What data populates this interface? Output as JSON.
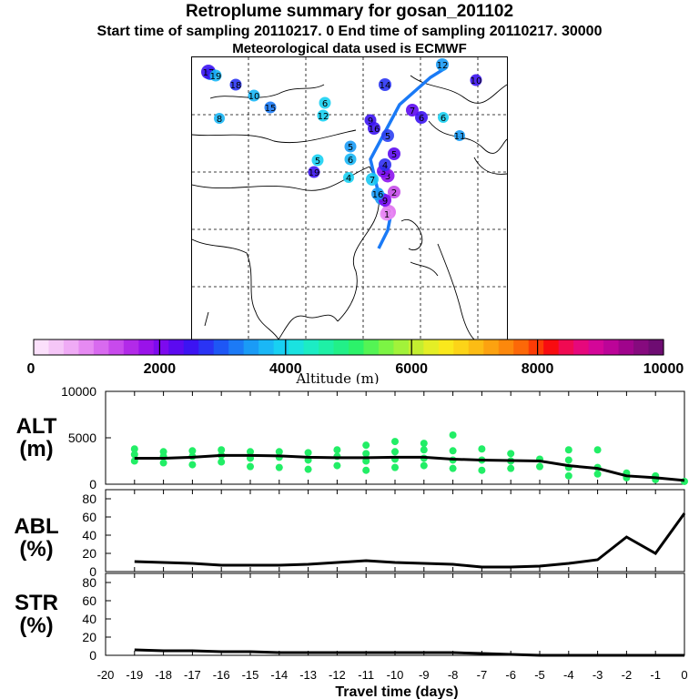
{
  "header": {
    "title": "Retroplume summary for gosan_201102",
    "sampling_line": "Start time of sampling 20110217.    0     End time of sampling 20110217. 30000",
    "met_line": "Meteorological data used is ECMWF"
  },
  "colorbar": {
    "colors": [
      "#fbe0fb",
      "#f5c6f7",
      "#efabf5",
      "#e68af2",
      "#d86aef",
      "#c84aec",
      "#b22ae8",
      "#9a12ea",
      "#7d0aee",
      "#5c0af0",
      "#3c14f2",
      "#2a34f4",
      "#1e57f5",
      "#1c7af6",
      "#1a9bf6",
      "#1ab7f6",
      "#18d0f2",
      "#1ae2e0",
      "#1cecc4",
      "#1ef0a6",
      "#22f088",
      "#2cf26a",
      "#54f454",
      "#7cf444",
      "#a2f23a",
      "#c4ee30",
      "#e4ee26",
      "#fae81c",
      "#fcd418",
      "#fcbc14",
      "#fca210",
      "#fc880c",
      "#fc6808",
      "#fc3c06",
      "#f80c10",
      "#f00a52",
      "#e6087c",
      "#d40698",
      "#bc0498",
      "#a0048c",
      "#860a7e",
      "#6e0c72"
    ],
    "tick_labels": [
      "0",
      "2000",
      "4000",
      "6000",
      "8000",
      "10000"
    ],
    "label": "Altitude (m)"
  },
  "panels": {
    "alt_label": "ALT\n(m)",
    "abl_label": "ABL\n(%)",
    "str_label": "STR\n(%)",
    "alt_ticks": [
      "0",
      "5000",
      "10000"
    ],
    "pct_ticks": [
      "0",
      "20",
      "40",
      "60",
      "80"
    ],
    "x_ticks": [
      "-20",
      "-19",
      "-18",
      "-17",
      "-16",
      "-15",
      "-14",
      "-13",
      "-12",
      "-11",
      "-10",
      "-9",
      "-8",
      "-7",
      "-6",
      "-5",
      "-4",
      "-3",
      "-2",
      "-1",
      "0"
    ],
    "xlabel": "Travel time (days)"
  },
  "chart_data": [
    {
      "type": "line",
      "name": "ALT",
      "ylabel": "ALT (m)",
      "xlim": [
        -20,
        0
      ],
      "ylim": [
        0,
        10000
      ],
      "x": [
        -19,
        -18,
        -17,
        -16,
        -15,
        -14,
        -13,
        -12,
        -11,
        -10,
        -9,
        -8,
        -7,
        -6,
        -5,
        -4,
        -3,
        -2,
        -1,
        0
      ],
      "values": [
        2800,
        2800,
        2900,
        3100,
        3100,
        3050,
        2900,
        2850,
        2850,
        2900,
        2900,
        2700,
        2600,
        2550,
        2500,
        2000,
        1700,
        900,
        700,
        400
      ],
      "scatter_color": "#22ee66",
      "scatter": [
        [
          -19,
          2500
        ],
        [
          -19,
          3200
        ],
        [
          -19,
          3800
        ],
        [
          -18,
          2300
        ],
        [
          -18,
          3000
        ],
        [
          -18,
          3500
        ],
        [
          -17,
          2100
        ],
        [
          -17,
          3000
        ],
        [
          -17,
          3600
        ],
        [
          -16,
          2400
        ],
        [
          -16,
          3100
        ],
        [
          -16,
          3700
        ],
        [
          -15,
          1900
        ],
        [
          -15,
          2800
        ],
        [
          -15,
          3500
        ],
        [
          -14,
          1800
        ],
        [
          -14,
          2900
        ],
        [
          -14,
          3500
        ],
        [
          -13,
          1600
        ],
        [
          -13,
          2600
        ],
        [
          -13,
          3400
        ],
        [
          -12,
          2000
        ],
        [
          -12,
          3000
        ],
        [
          -12,
          3700
        ],
        [
          -11,
          1500
        ],
        [
          -11,
          2500
        ],
        [
          -11,
          3300
        ],
        [
          -11,
          4200
        ],
        [
          -10,
          1800
        ],
        [
          -10,
          2700
        ],
        [
          -10,
          3500
        ],
        [
          -10,
          4600
        ],
        [
          -9,
          2000
        ],
        [
          -9,
          2800
        ],
        [
          -9,
          3700
        ],
        [
          -9,
          4400
        ],
        [
          -8,
          1700
        ],
        [
          -8,
          2600
        ],
        [
          -8,
          3600
        ],
        [
          -8,
          5300
        ],
        [
          -7,
          1500
        ],
        [
          -7,
          2600
        ],
        [
          -7,
          3800
        ],
        [
          -6,
          1700
        ],
        [
          -6,
          2500
        ],
        [
          -6,
          3300
        ],
        [
          -5,
          1900
        ],
        [
          -5,
          2700
        ],
        [
          -4,
          900
        ],
        [
          -4,
          1800
        ],
        [
          -4,
          2600
        ],
        [
          -4,
          3700
        ],
        [
          -3,
          1100
        ],
        [
          -3,
          1800
        ],
        [
          -3,
          3700
        ],
        [
          -2,
          700
        ],
        [
          -2,
          1200
        ],
        [
          -1,
          500
        ],
        [
          -1,
          900
        ],
        [
          0,
          300
        ]
      ]
    },
    {
      "type": "line",
      "name": "ABL",
      "ylabel": "ABL (%)",
      "xlim": [
        -20,
        0
      ],
      "ylim": [
        0,
        90
      ],
      "x": [
        -19,
        -18,
        -17,
        -16,
        -15,
        -14,
        -13,
        -12,
        -11,
        -10,
        -9,
        -8,
        -7,
        -6,
        -5,
        -4,
        -3,
        -2,
        -1,
        0
      ],
      "values": [
        11,
        10,
        9,
        7,
        7,
        7,
        8,
        10,
        12,
        10,
        9,
        8,
        5,
        5,
        6,
        9,
        13,
        38,
        20,
        64
      ]
    },
    {
      "type": "line",
      "name": "STR",
      "ylabel": "STR (%)",
      "xlim": [
        -20,
        0
      ],
      "ylim": [
        0,
        90
      ],
      "x": [
        -19,
        -18,
        -17,
        -16,
        -15,
        -14,
        -13,
        -12,
        -11,
        -10,
        -9,
        -8,
        -7,
        -6,
        -5,
        -4,
        -3,
        -2,
        -1,
        0
      ],
      "values": [
        6,
        5,
        5,
        4,
        4,
        3,
        3,
        3,
        3,
        3,
        3,
        3,
        2,
        1,
        0,
        0,
        0,
        0,
        0,
        0
      ]
    }
  ],
  "map": {
    "markers": [
      {
        "label": "2",
        "color": "#e070f0"
      },
      {
        "label": "1",
        "color": "#e88af4"
      },
      {
        "label": "2",
        "color": "#c44ae8"
      },
      {
        "label": "3",
        "color": "#8c12ee"
      },
      {
        "label": "3",
        "color": "#7a10ee"
      },
      {
        "label": "4",
        "color": "#3030f2"
      },
      {
        "label": "4",
        "color": "#18d0f2"
      },
      {
        "label": "5",
        "color": "#1a9bf6"
      },
      {
        "label": "5",
        "color": "#2c40f2"
      },
      {
        "label": "5",
        "color": "#18d0f2"
      },
      {
        "label": "5",
        "color": "#5c0af0"
      },
      {
        "label": "6",
        "color": "#3c14f2"
      },
      {
        "label": "6",
        "color": "#18d0f2"
      },
      {
        "label": "6",
        "color": "#1ab7f6"
      },
      {
        "label": "6",
        "color": "#18d0f2"
      },
      {
        "label": "7",
        "color": "#18c8f2"
      },
      {
        "label": "7",
        "color": "#5c0af0"
      },
      {
        "label": "8",
        "color": "#1ab7f6"
      },
      {
        "label": "8",
        "color": "#1a9bf6"
      },
      {
        "label": "9",
        "color": "#3c14f2"
      },
      {
        "label": "9",
        "color": "#7d0aee"
      },
      {
        "label": "10",
        "color": "#1ab7f6"
      },
      {
        "label": "10",
        "color": "#3c14f2"
      },
      {
        "label": "11",
        "color": "#1a9bf6"
      },
      {
        "label": "12",
        "color": "#1a9bf6"
      },
      {
        "label": "12",
        "color": "#18d0f2"
      },
      {
        "label": "13",
        "color": "#1a7af6"
      },
      {
        "label": "14",
        "color": "#2a34f4"
      },
      {
        "label": "15",
        "color": "#1a7af6"
      },
      {
        "label": "16",
        "color": "#3c14f2"
      },
      {
        "label": "16",
        "color": "#1a9bf6"
      },
      {
        "label": "17",
        "color": "#3c14f2"
      },
      {
        "label": "18",
        "color": "#2a34f4"
      },
      {
        "label": "19",
        "color": "#1ab7f6"
      },
      {
        "label": "19",
        "color": "#3c14f2"
      }
    ]
  }
}
